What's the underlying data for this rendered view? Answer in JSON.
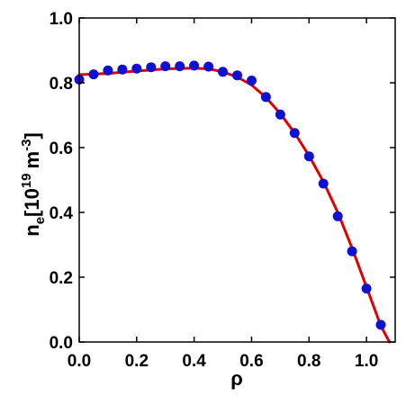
{
  "chart_data": {
    "type": "scatter",
    "xlabel": "ρ",
    "ylabel": {
      "base": "n",
      "subscript": "e",
      "bracket_open": "[10",
      "exponent": "19",
      "unit": "m",
      "unit_exponent": "-3",
      "bracket_close": "]"
    },
    "xlim": [
      0.0,
      1.1
    ],
    "ylim": [
      0.0,
      1.0
    ],
    "xticks": [
      "0.0",
      "0.2",
      "0.4",
      "0.6",
      "0.8",
      "1.0"
    ],
    "yticks": [
      "0.0",
      "0.2",
      "0.4",
      "0.6",
      "0.8",
      "1.0"
    ],
    "grid": false,
    "legend": "none",
    "series": [
      {
        "kind": "points",
        "color": "#1010d0",
        "x": [
          0.0,
          0.05,
          0.1,
          0.15,
          0.2,
          0.25,
          0.3,
          0.35,
          0.4,
          0.45,
          0.5,
          0.55,
          0.6,
          0.65,
          0.7,
          0.75,
          0.8,
          0.85,
          0.9,
          0.95,
          1.0,
          1.05
        ],
        "y": [
          0.81,
          0.826,
          0.838,
          0.841,
          0.844,
          0.848,
          0.851,
          0.851,
          0.853,
          0.85,
          0.834,
          0.823,
          0.807,
          0.756,
          0.702,
          0.645,
          0.573,
          0.489,
          0.388,
          0.28,
          0.165,
          0.053
        ]
      },
      {
        "kind": "fit-curve",
        "color": "#e00000",
        "x": [
          0.0,
          0.1,
          0.2,
          0.3,
          0.4,
          0.45,
          0.5,
          0.55,
          0.6,
          0.65,
          0.7,
          0.75,
          0.8,
          0.85,
          0.9,
          0.95,
          1.0,
          1.05,
          1.08
        ],
        "y": [
          0.825,
          0.829,
          0.836,
          0.843,
          0.845,
          0.843,
          0.834,
          0.818,
          0.793,
          0.755,
          0.705,
          0.645,
          0.575,
          0.495,
          0.4,
          0.29,
          0.17,
          0.05,
          0.0
        ]
      }
    ]
  }
}
